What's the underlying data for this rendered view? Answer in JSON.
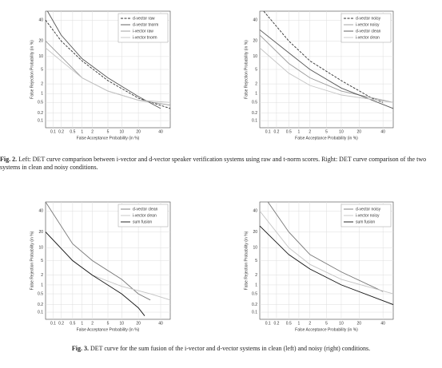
{
  "chart_data": [
    {
      "type": "line",
      "scale": "probit",
      "xlabel": "False Acceptance Probability (in %)",
      "ylabel": "False Rejection Probability (in %)",
      "xlim": [
        0.05,
        50
      ],
      "ylim": [
        0.05,
        50
      ],
      "xticks": [
        0.1,
        0.2,
        0.5,
        1,
        2,
        5,
        10,
        20,
        40
      ],
      "yticks": [
        0.1,
        0.2,
        0.5,
        1,
        2,
        5,
        10,
        20,
        40
      ],
      "grid": true,
      "legend": "top-right",
      "series": [
        {
          "name": "d-vector raw",
          "color": "#333333",
          "style": "dashed",
          "x": [
            0.05,
            0.2,
            1,
            5,
            20,
            50
          ],
          "values": [
            40,
            20,
            8,
            2.5,
            0.7,
            0.3
          ]
        },
        {
          "name": "d-vector tnorm",
          "color": "#555555",
          "style": "solid",
          "x": [
            0.06,
            0.2,
            1,
            5,
            20,
            40
          ],
          "values": [
            50,
            25,
            9,
            3,
            0.8,
            0.3
          ]
        },
        {
          "name": "i-vector raw",
          "color": "#999999",
          "style": "solid",
          "x": [
            0.05,
            0.2,
            1,
            5,
            20,
            50
          ],
          "values": [
            20,
            10,
            3,
            1.2,
            0.6,
            0.4
          ]
        },
        {
          "name": "i-vector tnorm",
          "color": "#c4c4c4",
          "style": "solid",
          "x": [
            0.05,
            0.2,
            1,
            5,
            20,
            50
          ],
          "values": [
            15,
            8,
            3,
            1.2,
            0.6,
            0.5
          ]
        }
      ]
    },
    {
      "type": "line",
      "scale": "probit",
      "xlabel": "False Acceptance Probability (in %)",
      "ylabel": "False Rejection Probability (in %)",
      "xlim": [
        0.05,
        50
      ],
      "ylim": [
        0.05,
        50
      ],
      "xticks": [
        0.1,
        0.2,
        0.5,
        1,
        2,
        5,
        10,
        20,
        40
      ],
      "yticks": [
        0.1,
        0.2,
        0.5,
        1,
        2,
        5,
        10,
        20,
        40
      ],
      "grid": true,
      "legend": "top-right",
      "series": [
        {
          "name": "d-vector noisy",
          "color": "#333333",
          "style": "dashed",
          "x": [
            0.07,
            0.5,
            2,
            10,
            30,
            40
          ],
          "values": [
            50,
            20,
            8,
            2.5,
            0.7,
            0.5
          ]
        },
        {
          "name": "i-vector noisy",
          "color": "#999999",
          "style": "solid",
          "x": [
            0.05,
            0.5,
            2,
            10,
            50
          ],
          "values": [
            25,
            7,
            3,
            1.2,
            0.5
          ]
        },
        {
          "name": "d-vector clean",
          "color": "#555555",
          "style": "solid",
          "x": [
            0.05,
            0.5,
            2,
            10,
            50
          ],
          "values": [
            30,
            12,
            5,
            1.5,
            0.3
          ]
        },
        {
          "name": "i-vector clean",
          "color": "#c4c4c4",
          "style": "solid",
          "x": [
            0.05,
            0.5,
            2,
            10,
            50
          ],
          "values": [
            15,
            4,
            1.8,
            0.9,
            0.5
          ]
        }
      ]
    },
    {
      "type": "line",
      "scale": "probit",
      "xlabel": "False Acceptance Probability (in %)",
      "ylabel": "False Rejection Probability (in %)",
      "xlim": [
        0.05,
        50
      ],
      "ylim": [
        0.05,
        50
      ],
      "xticks": [
        0.1,
        0.2,
        0.5,
        1,
        2,
        5,
        10,
        20,
        40
      ],
      "yticks": [
        0.1,
        0.2,
        0.5,
        1,
        2,
        5,
        10,
        20,
        40
      ],
      "grid": true,
      "legend": "top-right",
      "series": [
        {
          "name": "d-vector clean",
          "color": "#777777",
          "style": "solid",
          "x": [
            0.05,
            0.5,
            2,
            10,
            20,
            30
          ],
          "values": [
            50,
            12,
            5,
            1.5,
            0.5,
            0.3
          ]
        },
        {
          "name": "i-vector clean",
          "color": "#c4c4c4",
          "style": "solid",
          "x": [
            0.05,
            0.5,
            2,
            10,
            30,
            50
          ],
          "values": [
            20,
            5,
            2,
            0.9,
            0.5,
            0.3
          ]
        },
        {
          "name": "sum fusion",
          "color": "#111111",
          "style": "solid",
          "x": [
            0.05,
            0.5,
            2,
            10,
            20,
            25
          ],
          "values": [
            20,
            5,
            2,
            0.5,
            0.15,
            0.07
          ]
        }
      ]
    },
    {
      "type": "line",
      "scale": "probit",
      "xlabel": "False Acceptance Probability (in %)",
      "ylabel": "False Rejection Probability (in %)",
      "xlim": [
        0.05,
        50
      ],
      "ylim": [
        0.05,
        50
      ],
      "xticks": [
        0.1,
        0.2,
        0.5,
        1,
        2,
        5,
        10,
        20,
        40
      ],
      "yticks": [
        0.1,
        0.2,
        0.5,
        1,
        2,
        5,
        10,
        20,
        40
      ],
      "grid": true,
      "legend": "top-right",
      "series": [
        {
          "name": "d-vector noisy",
          "color": "#777777",
          "style": "solid",
          "x": [
            0.1,
            0.5,
            2,
            10,
            40
          ],
          "values": [
            50,
            20,
            7,
            2.5,
            0.6
          ]
        },
        {
          "name": "i-vector noisy",
          "color": "#c4c4c4",
          "style": "solid",
          "x": [
            0.05,
            0.5,
            2,
            10,
            50
          ],
          "values": [
            40,
            10,
            4,
            1.5,
            0.5
          ]
        },
        {
          "name": "sum fusion",
          "color": "#111111",
          "style": "solid",
          "x": [
            0.05,
            0.5,
            2,
            10,
            50
          ],
          "values": [
            25,
            7,
            3,
            1,
            0.2
          ]
        }
      ]
    }
  ],
  "captions": [
    {
      "label": "Fig. 2.",
      "text": "Left: DET curve comparison between i-vector and d-vector speaker verification systems using raw and t-norm scores. Right: DET curve comparison of the two systems in clean and noisy conditions."
    },
    {
      "label": "Fig. 3.",
      "text": "DET curve for the sum fusion of the i-vector and d-vector systems in clean (left) and noisy (right) conditions."
    }
  ]
}
